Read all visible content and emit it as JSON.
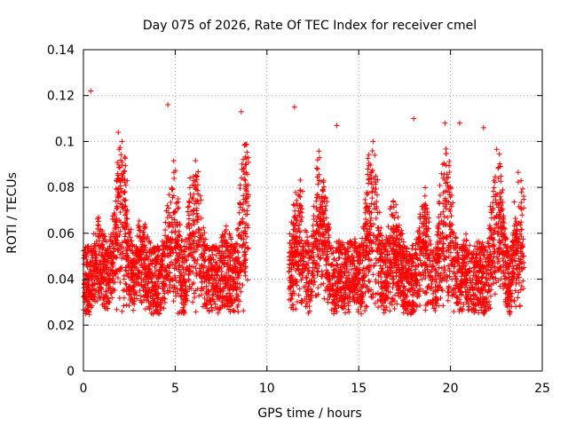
{
  "chart_data": {
    "type": "scatter",
    "title": "Day 075 of 2026, Rate Of TEC Index for receiver cmel",
    "xlabel": "GPS time / hours",
    "ylabel": "ROTI / TECUs",
    "xlim": [
      0,
      25
    ],
    "ylim": [
      0,
      0.14
    ],
    "xticks": [
      0,
      5,
      10,
      15,
      20,
      25
    ],
    "xtick_labels": [
      "0",
      "5",
      "10",
      "15",
      "20",
      "25"
    ],
    "yticks": [
      0,
      0.02,
      0.04,
      0.06,
      0.08,
      0.1,
      0.12,
      0.14
    ],
    "ytick_labels": [
      "0",
      "0.02",
      "0.04",
      "0.06",
      "0.08",
      "0.1",
      "0.12",
      "0.14"
    ],
    "grid": true,
    "marker": "plus",
    "color": "#ff0000",
    "series": [
      {
        "name": "ROTI",
        "segments": [
          {
            "x_start": 0.0,
            "x_end": 9.0
          },
          {
            "x_start": 11.2,
            "x_end": 24.0
          }
        ],
        "typical_range": [
          0.01,
          0.09
        ],
        "baseline": 0.035,
        "notable_points": [
          {
            "x": 0.4,
            "y": 0.122
          },
          {
            "x": 1.9,
            "y": 0.104
          },
          {
            "x": 4.6,
            "y": 0.116
          },
          {
            "x": 8.6,
            "y": 0.113
          },
          {
            "x": 11.5,
            "y": 0.115
          },
          {
            "x": 13.8,
            "y": 0.107
          },
          {
            "x": 18.0,
            "y": 0.11
          },
          {
            "x": 19.7,
            "y": 0.108
          },
          {
            "x": 20.5,
            "y": 0.108
          },
          {
            "x": 21.8,
            "y": 0.106
          }
        ]
      }
    ]
  }
}
